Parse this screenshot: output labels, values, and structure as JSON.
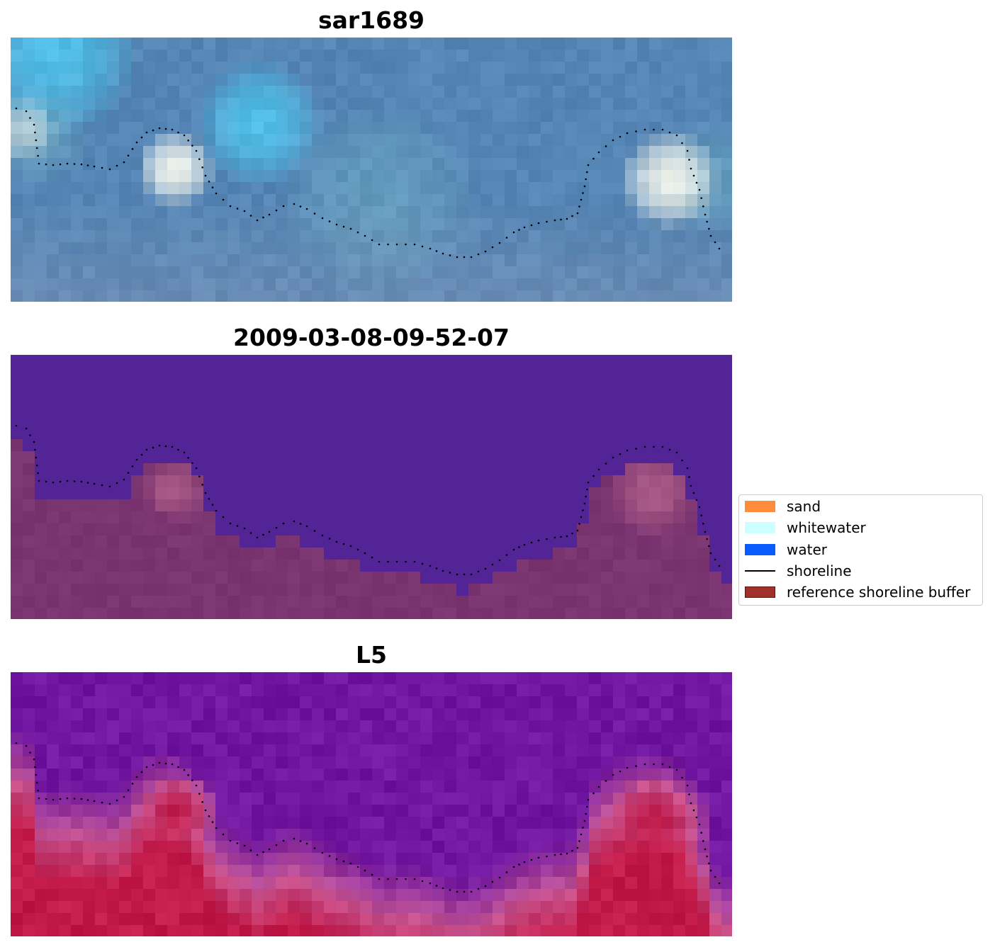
{
  "panels": [
    {
      "title": "sar1689",
      "kind": "rgb"
    },
    {
      "title": "2009-03-08-09-52-07",
      "kind": "classified"
    },
    {
      "title": "L5",
      "kind": "probability"
    }
  ],
  "legend": {
    "items": [
      {
        "label": "sand",
        "color": "#ff8c3a",
        "kind": "patch"
      },
      {
        "label": "whitewater",
        "color": "#ccffff",
        "kind": "patch"
      },
      {
        "label": "water",
        "color": "#0a5cff",
        "kind": "patch"
      },
      {
        "label": "shoreline",
        "color": "#000000",
        "kind": "line"
      },
      {
        "label": "reference shoreline buffer",
        "color": "#a0302c",
        "kind": "patch"
      }
    ]
  },
  "colors": {
    "water_class": "#522496",
    "buffer_class": "#7a3470",
    "buffer_peak": "#b4628a",
    "image_blue": "#5585b5",
    "image_light": "#4fc8f0",
    "image_white": "#f4f6ec",
    "prob_low": "#7016a0",
    "prob_high": "#c21a48"
  }
}
